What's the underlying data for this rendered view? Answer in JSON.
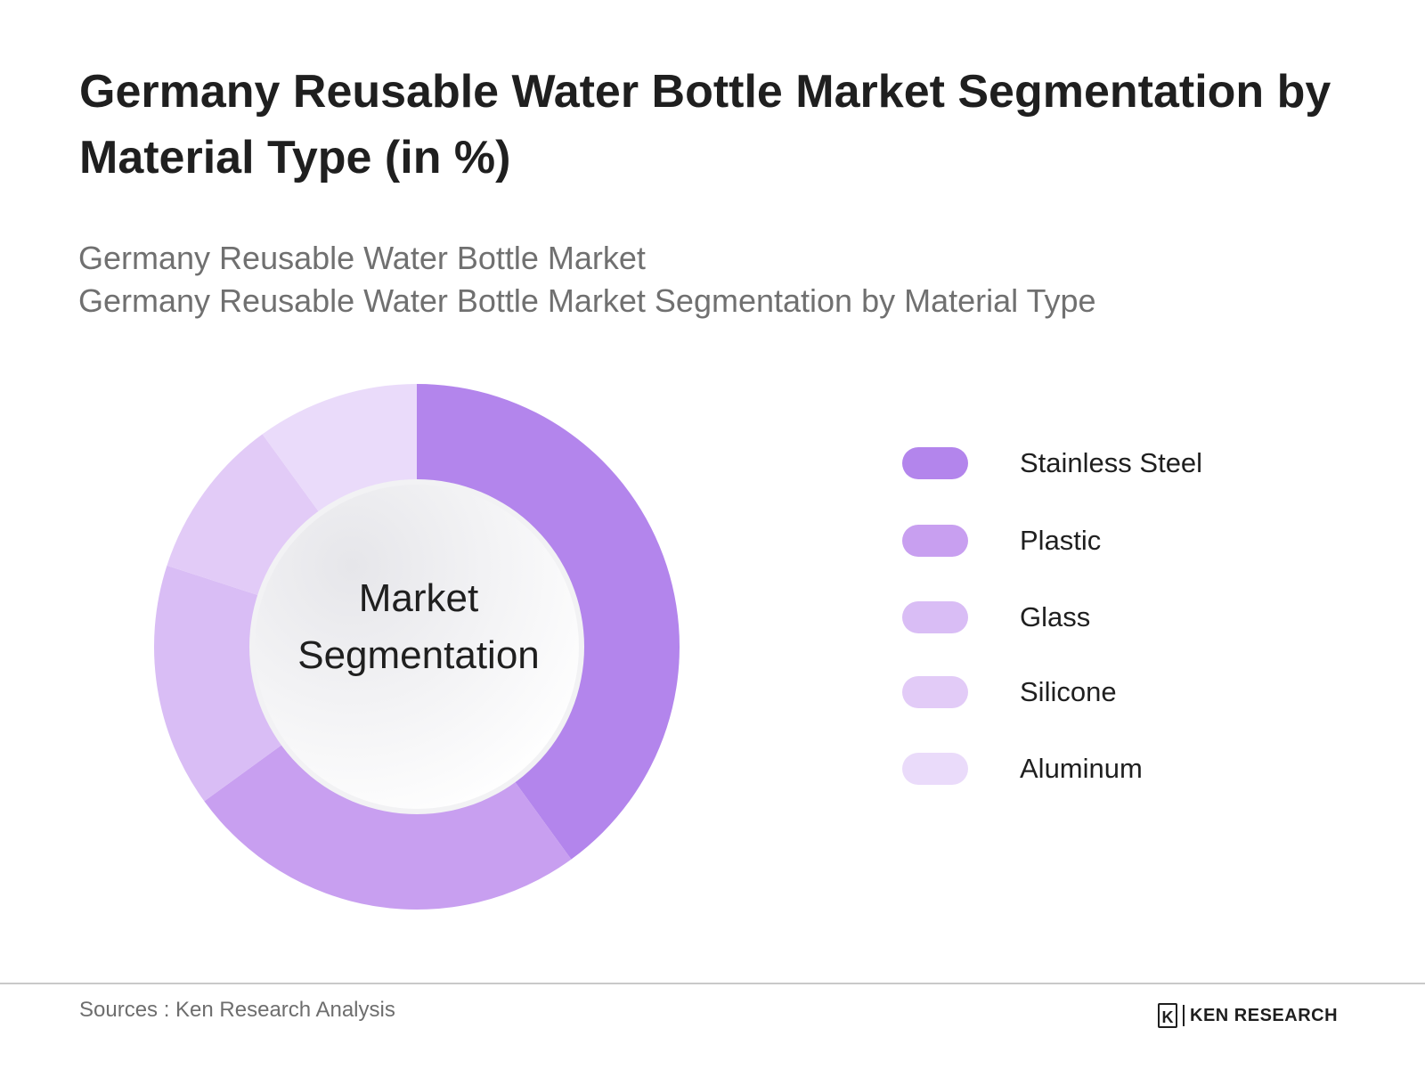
{
  "title": "Germany Reusable Water Bottle Market Segmentation by Material Type (in %)",
  "subtitle_lines": [
    "Germany Reusable Water Bottle Market",
    "Germany Reusable Water Bottle Market Segmentation by Material Type"
  ],
  "center_label": {
    "line1": "Market",
    "line2": "Segmentation"
  },
  "chart_data": {
    "type": "pie",
    "variant": "donut",
    "categories": [
      "Stainless Steel",
      "Plastic",
      "Glass",
      "Silicone",
      "Aluminum"
    ],
    "values": [
      40,
      25,
      15,
      10,
      10
    ],
    "colors": [
      "#b385ec",
      "#c89ff0",
      "#d9bdf5",
      "#e2cbf7",
      "#eadbfa"
    ],
    "legend_position": "right"
  },
  "legend": {
    "items": [
      {
        "label": "Stainless Steel",
        "color": "#b385ec"
      },
      {
        "label": "Plastic",
        "color": "#c89ff0"
      },
      {
        "label": "Glass",
        "color": "#d9bdf5"
      },
      {
        "label": "Silicone",
        "color": "#e2cbf7"
      },
      {
        "label": "Aluminum",
        "color": "#eadbfa"
      }
    ]
  },
  "footer": {
    "source": "Sources : Ken Research Analysis",
    "logo_mark": "K",
    "logo_text": "KEN RESEARCH"
  }
}
